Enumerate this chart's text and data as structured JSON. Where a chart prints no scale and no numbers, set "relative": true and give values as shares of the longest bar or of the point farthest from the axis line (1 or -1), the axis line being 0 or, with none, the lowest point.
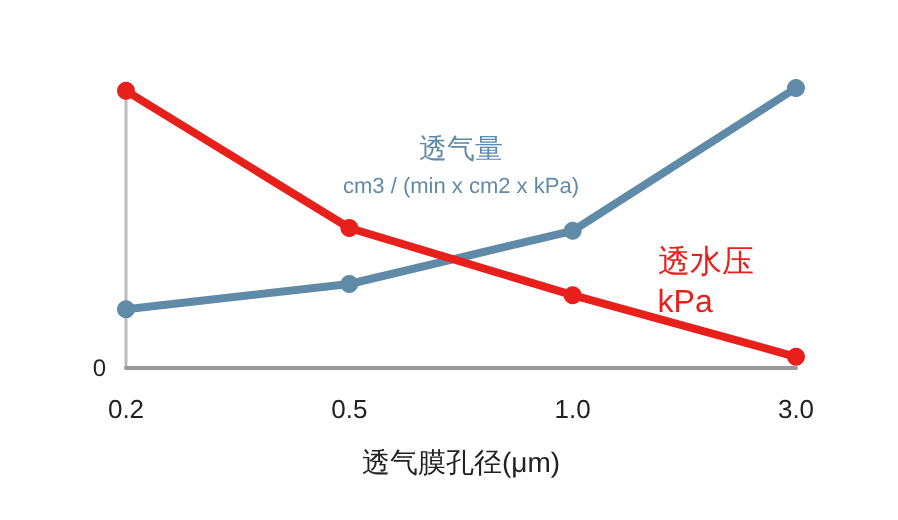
{
  "chart_data": {
    "type": "line",
    "xlabel": "透气膜孔径(μm)",
    "categories": [
      "0.2",
      "0.5",
      "1.0",
      "3.0"
    ],
    "relative": true,
    "marker": "circle",
    "series": [
      {
        "name": "透气量\ncm3 / (min x cm2 x kPa)",
        "color": "#5f8aa8",
        "values": [
          0.21,
          0.3,
          0.49,
          1
        ]
      },
      {
        "name": "透水压\nkPa",
        "color": "#e8201c",
        "values": [
          0.99,
          0.5,
          0.26,
          0.04
        ]
      }
    ],
    "annotations": [
      "0"
    ]
  }
}
